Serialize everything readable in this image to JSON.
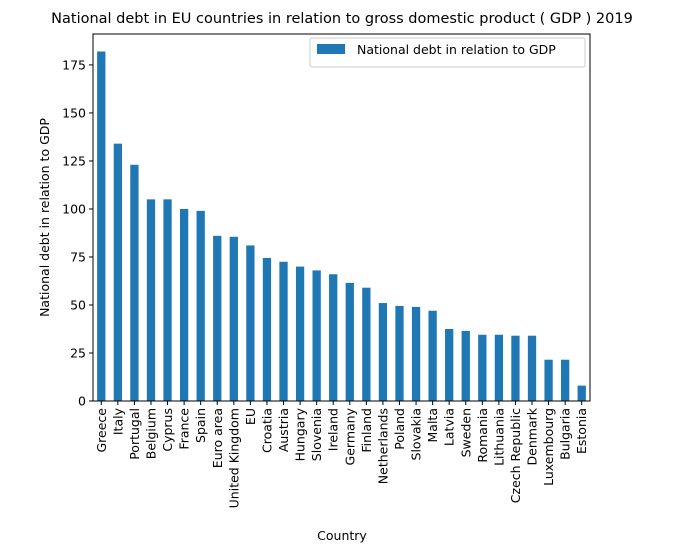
{
  "chart_data": {
    "type": "bar",
    "title": "National debt in EU countries in relation to gross domestic product ( GDP ) 2019",
    "xlabel": "Country",
    "ylabel": "National debt in relation to GDP",
    "ylim": [
      0,
      191.1
    ],
    "yticks": [
      0,
      25,
      50,
      75,
      100,
      125,
      150,
      175
    ],
    "grid": false,
    "legend_position": "top-right",
    "bar_color": "#1f77b4",
    "categories": [
      "Greece",
      "Italy",
      "Portugal",
      "Belgium",
      "Cyprus",
      "France",
      "Spain",
      "Euro area",
      "United Kingdom",
      "EU",
      "Croatia",
      "Austria",
      "Hungary",
      "Slovenia",
      "Ireland",
      "Germany",
      "Finland",
      "Netherlands",
      "Poland",
      "Slovakia",
      "Malta",
      "Latvia",
      "Sweden",
      "Romania",
      "Lithuania",
      "Czech Republic",
      "Denmark",
      "Luxembourg",
      "Bulgaria",
      "Estonia"
    ],
    "series": [
      {
        "name": "National debt in relation to GDP",
        "values": [
          182,
          134,
          123,
          105,
          105,
          100,
          99,
          86,
          85.5,
          81,
          74.5,
          72.5,
          70,
          68,
          66,
          61.5,
          59,
          51,
          49.5,
          49,
          47,
          37.5,
          36.5,
          34.5,
          34.5,
          34,
          34,
          21.5,
          21.5,
          8
        ]
      }
    ]
  }
}
